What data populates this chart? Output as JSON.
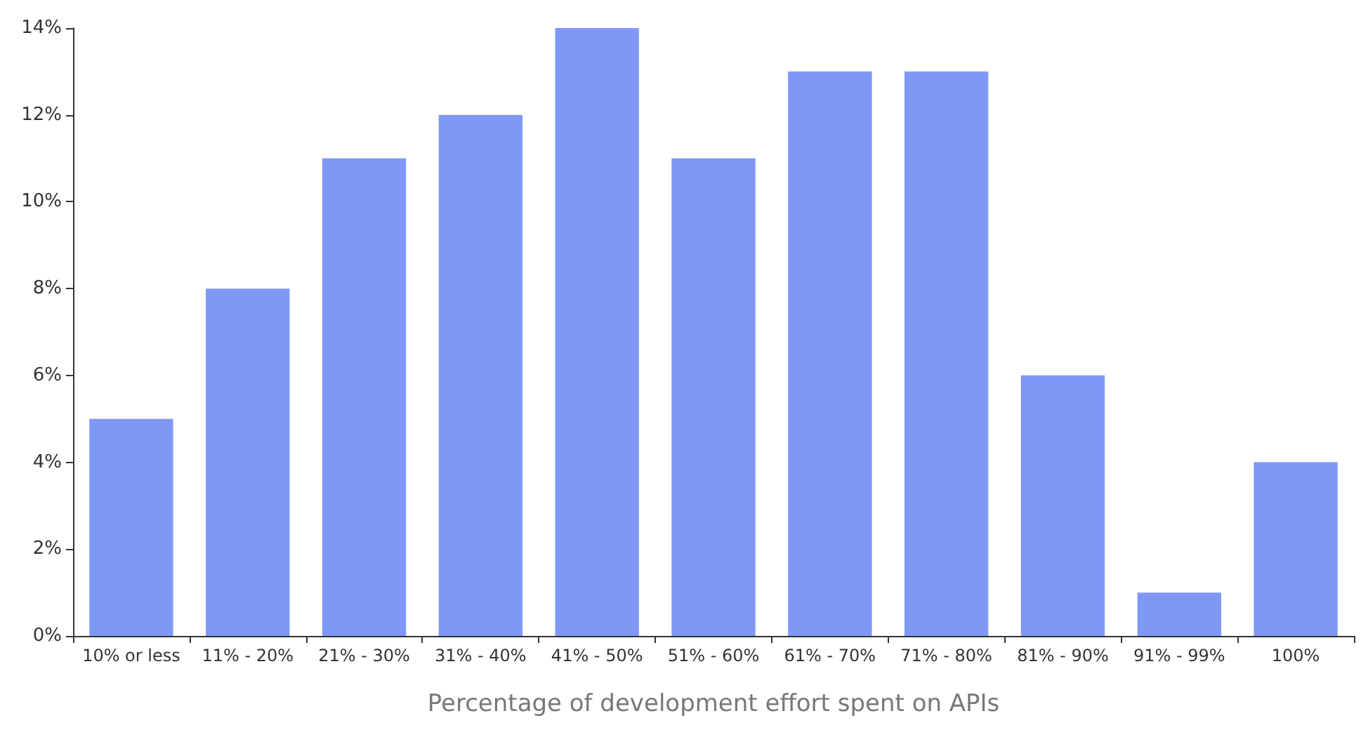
{
  "chart_data": {
    "type": "bar",
    "xlabel": "Percentage of development effort spent on APIs",
    "categories": [
      "10% or less",
      "11% - 20%",
      "21% - 30%",
      "31% - 40%",
      "41% - 50%",
      "51% - 60%",
      "61% - 70%",
      "71% - 80%",
      "81% - 90%",
      "91% - 99%",
      "100%"
    ],
    "values": [
      5,
      8,
      11,
      12,
      14,
      11,
      13,
      13,
      6,
      1,
      4
    ],
    "color": "#8098f5",
    "ylim": [
      0,
      14
    ],
    "yticks": [
      {
        "value": 0,
        "label": "0%"
      },
      {
        "value": 2,
        "label": "2%"
      },
      {
        "value": 4,
        "label": "4%"
      },
      {
        "value": 6,
        "label": "6%"
      },
      {
        "value": 8,
        "label": "8%"
      },
      {
        "value": 10,
        "label": "10%"
      },
      {
        "value": 12,
        "label": "12%"
      },
      {
        "value": 14,
        "label": "14%"
      }
    ],
    "grid": false
  }
}
